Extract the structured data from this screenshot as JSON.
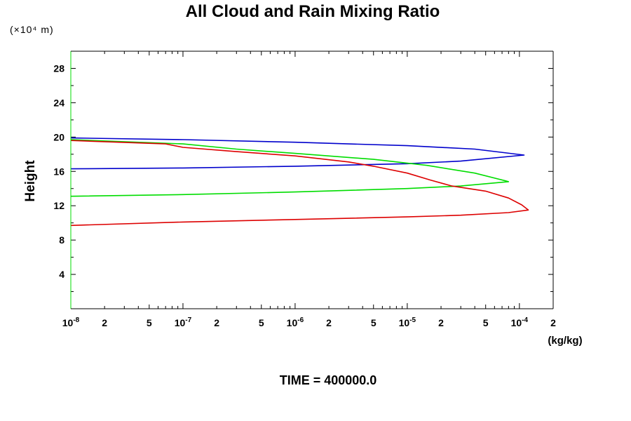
{
  "chart_data": {
    "type": "line",
    "title": "All Cloud and Rain Mixing Ratio",
    "ylabel": "Height",
    "y_scale_label": "(×10⁴ m)",
    "xlabel": "(kg/kg)",
    "footer": "TIME = 400000.0",
    "x_scale": "log",
    "xlim": [
      1e-08,
      0.0002
    ],
    "ylim": [
      0,
      30
    ],
    "y_ticks": [
      "4",
      "8",
      "12",
      "16",
      "20",
      "24",
      "28"
    ],
    "x_tick_labels": [
      {
        "base": "10",
        "exp": "-8",
        "value": 1e-08
      },
      {
        "base": "2",
        "exp": "",
        "value": 2e-08
      },
      {
        "base": "5",
        "exp": "",
        "value": 5e-08
      },
      {
        "base": "10",
        "exp": "-7",
        "value": 1e-07
      },
      {
        "base": "2",
        "exp": "",
        "value": 2e-07
      },
      {
        "base": "5",
        "exp": "",
        "value": 5e-07
      },
      {
        "base": "10",
        "exp": "-6",
        "value": 1e-06
      },
      {
        "base": "2",
        "exp": "",
        "value": 2e-06
      },
      {
        "base": "5",
        "exp": "",
        "value": 5e-06
      },
      {
        "base": "10",
        "exp": "-5",
        "value": 1e-05
      },
      {
        "base": "2",
        "exp": "",
        "value": 2e-05
      },
      {
        "base": "5",
        "exp": "",
        "value": 5e-05
      },
      {
        "base": "10",
        "exp": "-4",
        "value": 0.0001
      },
      {
        "base": "2",
        "exp": "",
        "value": 0.0002
      }
    ],
    "grid": false,
    "series": [
      {
        "color": "#0000cc",
        "points": [
          [
            1e-08,
            19.9
          ],
          [
            1e-07,
            19.7
          ],
          [
            1e-06,
            19.4
          ],
          [
            1e-05,
            19.0
          ],
          [
            4e-05,
            18.6
          ],
          [
            0.00011,
            17.9
          ],
          [
            3e-05,
            17.2
          ],
          [
            1e-05,
            16.9
          ],
          [
            1e-06,
            16.6
          ],
          [
            1e-07,
            16.4
          ],
          [
            1e-08,
            16.3
          ]
        ]
      },
      {
        "color": "#00dd00",
        "points": [
          [
            1e-08,
            19.7
          ],
          [
            1e-07,
            19.2
          ],
          [
            3e-07,
            18.6
          ],
          [
            1e-06,
            18.1
          ],
          [
            5e-06,
            17.4
          ],
          [
            1.5e-05,
            16.7
          ],
          [
            4e-05,
            15.8
          ],
          [
            7.5e-05,
            14.9
          ],
          [
            8e-05,
            14.8
          ],
          [
            3e-05,
            14.3
          ],
          [
            1e-05,
            14.0
          ],
          [
            1e-06,
            13.6
          ],
          [
            1e-07,
            13.3
          ],
          [
            1e-08,
            13.1
          ]
        ]
      },
      {
        "color": "#dd0000",
        "points": [
          [
            1e-08,
            19.6
          ],
          [
            7e-08,
            19.2
          ],
          [
            1e-07,
            18.8
          ],
          [
            3e-07,
            18.3
          ],
          [
            1e-06,
            17.8
          ],
          [
            3e-06,
            17.1
          ],
          [
            5e-06,
            16.6
          ],
          [
            1e-05,
            15.8
          ],
          [
            1.6e-05,
            15.0
          ],
          [
            2.5e-05,
            14.3
          ],
          [
            5e-05,
            13.7
          ],
          [
            8e-05,
            12.9
          ],
          [
            0.000105,
            12.1
          ],
          [
            0.00012,
            11.5
          ],
          [
            8e-05,
            11.2
          ],
          [
            3e-05,
            10.9
          ],
          [
            1e-05,
            10.7
          ],
          [
            1e-06,
            10.4
          ],
          [
            1e-07,
            10.1
          ],
          [
            1e-08,
            9.7
          ]
        ]
      }
    ]
  }
}
